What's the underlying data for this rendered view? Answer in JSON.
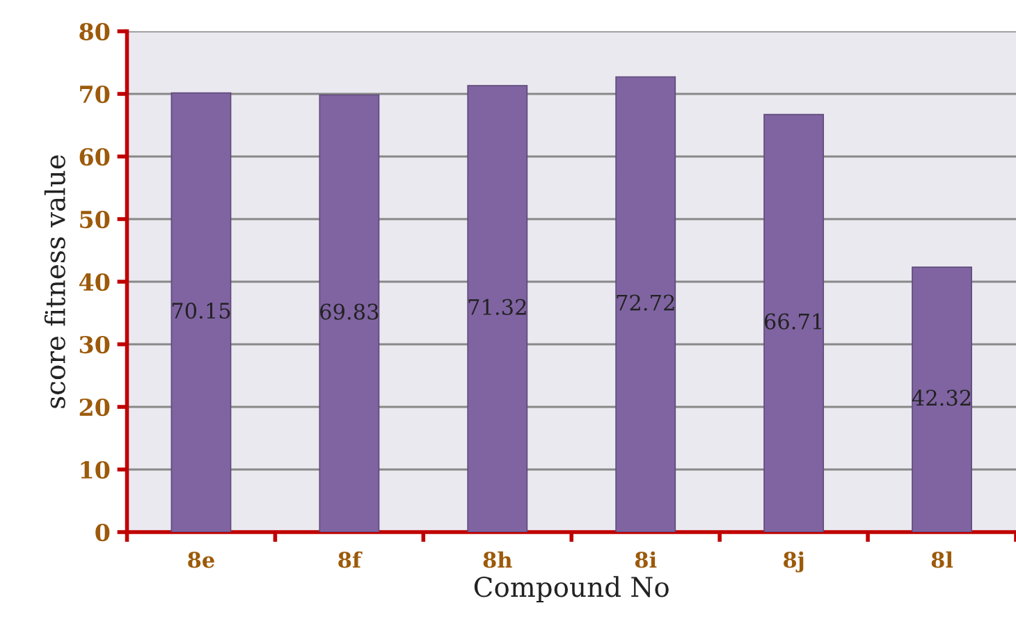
{
  "chart_data": {
    "type": "bar",
    "ylabel": "score fitness value",
    "xlabel": "Compound No",
    "categories": [
      "8e",
      "8f",
      "8h",
      "8i",
      "8j",
      "8l"
    ],
    "values": [
      70.15,
      69.83,
      71.32,
      72.72,
      66.71,
      42.32
    ],
    "color": "#8064a2",
    "data_labels": true,
    "ylim": [
      0,
      80
    ],
    "yticks": [
      0,
      10,
      20,
      30,
      40,
      50,
      60,
      70,
      80
    ],
    "grid": "y",
    "legend": false
  }
}
